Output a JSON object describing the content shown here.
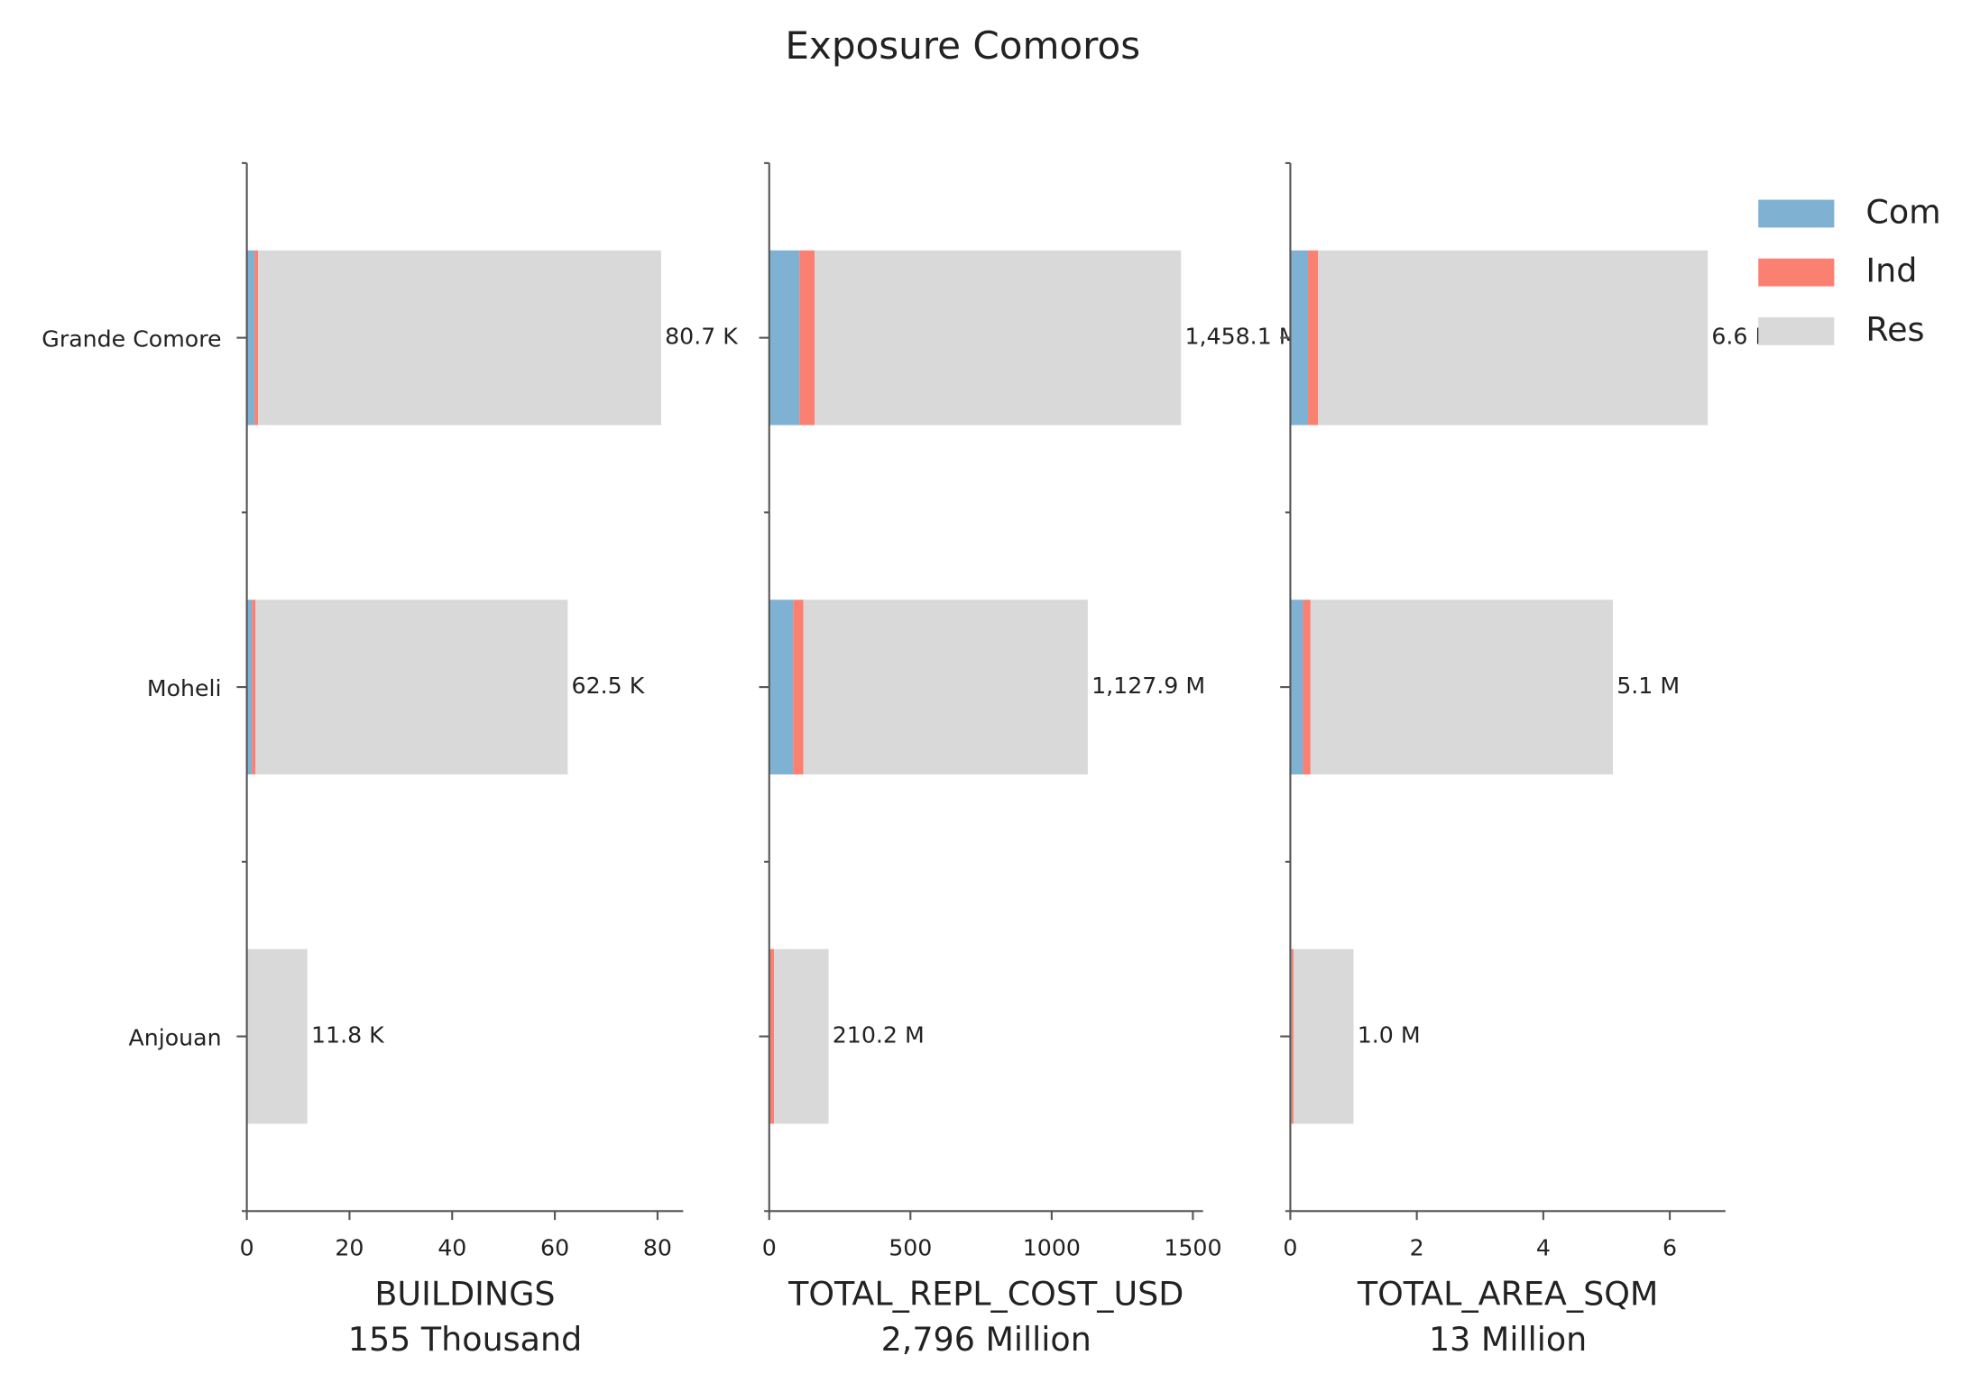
{
  "title": "Exposure Comoros",
  "chart_data": [
    {
      "type": "barh",
      "xlabel": "BUILDINGS",
      "xlabel_note": "155 Thousand",
      "categories": [
        "Grande Comore",
        "Moheli",
        "Anjouan"
      ],
      "series": [
        {
          "name": "Com",
          "color": "#7fb1d3",
          "values": [
            1.5,
            1.0,
            0.0
          ]
        },
        {
          "name": "Ind",
          "color": "#fa8072",
          "values": [
            0.7,
            0.7,
            0.1
          ]
        },
        {
          "name": "Res",
          "color": "#d9d9d9",
          "values": [
            78.5,
            60.8,
            11.7
          ]
        }
      ],
      "totals": [
        80.7,
        62.5,
        11.8
      ],
      "total_labels": [
        "80.7 K",
        "62.5 K",
        "11.8 K"
      ],
      "xlim": [
        0,
        85
      ],
      "xticks": [
        0,
        20,
        40,
        60,
        80
      ]
    },
    {
      "type": "barh",
      "xlabel": "TOTAL_REPL_COST_USD",
      "xlabel_note": "2,796 Million",
      "series": [
        {
          "name": "Com",
          "color": "#7fb1d3",
          "values": [
            107,
            85,
            4
          ]
        },
        {
          "name": "Ind",
          "color": "#fa8072",
          "values": [
            54,
            36,
            13
          ]
        },
        {
          "name": "Res",
          "color": "#d9d9d9",
          "values": [
            1297.1,
            1006.9,
            193.2
          ]
        }
      ],
      "totals": [
        1458.1,
        1127.9,
        210.2
      ],
      "total_labels": [
        "1,458.1 M",
        "1,127.9 M",
        "210.2 M"
      ],
      "xlim": [
        0,
        1536
      ],
      "xticks": [
        0,
        500,
        1000,
        1500
      ]
    },
    {
      "type": "barh",
      "xlabel": "TOTAL_AREA_SQM",
      "xlabel_note": "13 Million",
      "series": [
        {
          "name": "Com",
          "color": "#7fb1d3",
          "values": [
            0.28,
            0.2,
            0.02
          ]
        },
        {
          "name": "Ind",
          "color": "#fa8072",
          "values": [
            0.16,
            0.12,
            0.03
          ]
        },
        {
          "name": "Res",
          "color": "#d9d9d9",
          "values": [
            6.16,
            4.78,
            0.95
          ]
        }
      ],
      "totals": [
        6.6,
        5.1,
        1.0
      ],
      "total_labels": [
        "6.6 M",
        "5.1 M",
        "1.0 M"
      ],
      "xlim": [
        0,
        6.88
      ],
      "xticks": [
        0,
        2,
        4,
        6
      ]
    }
  ]
}
